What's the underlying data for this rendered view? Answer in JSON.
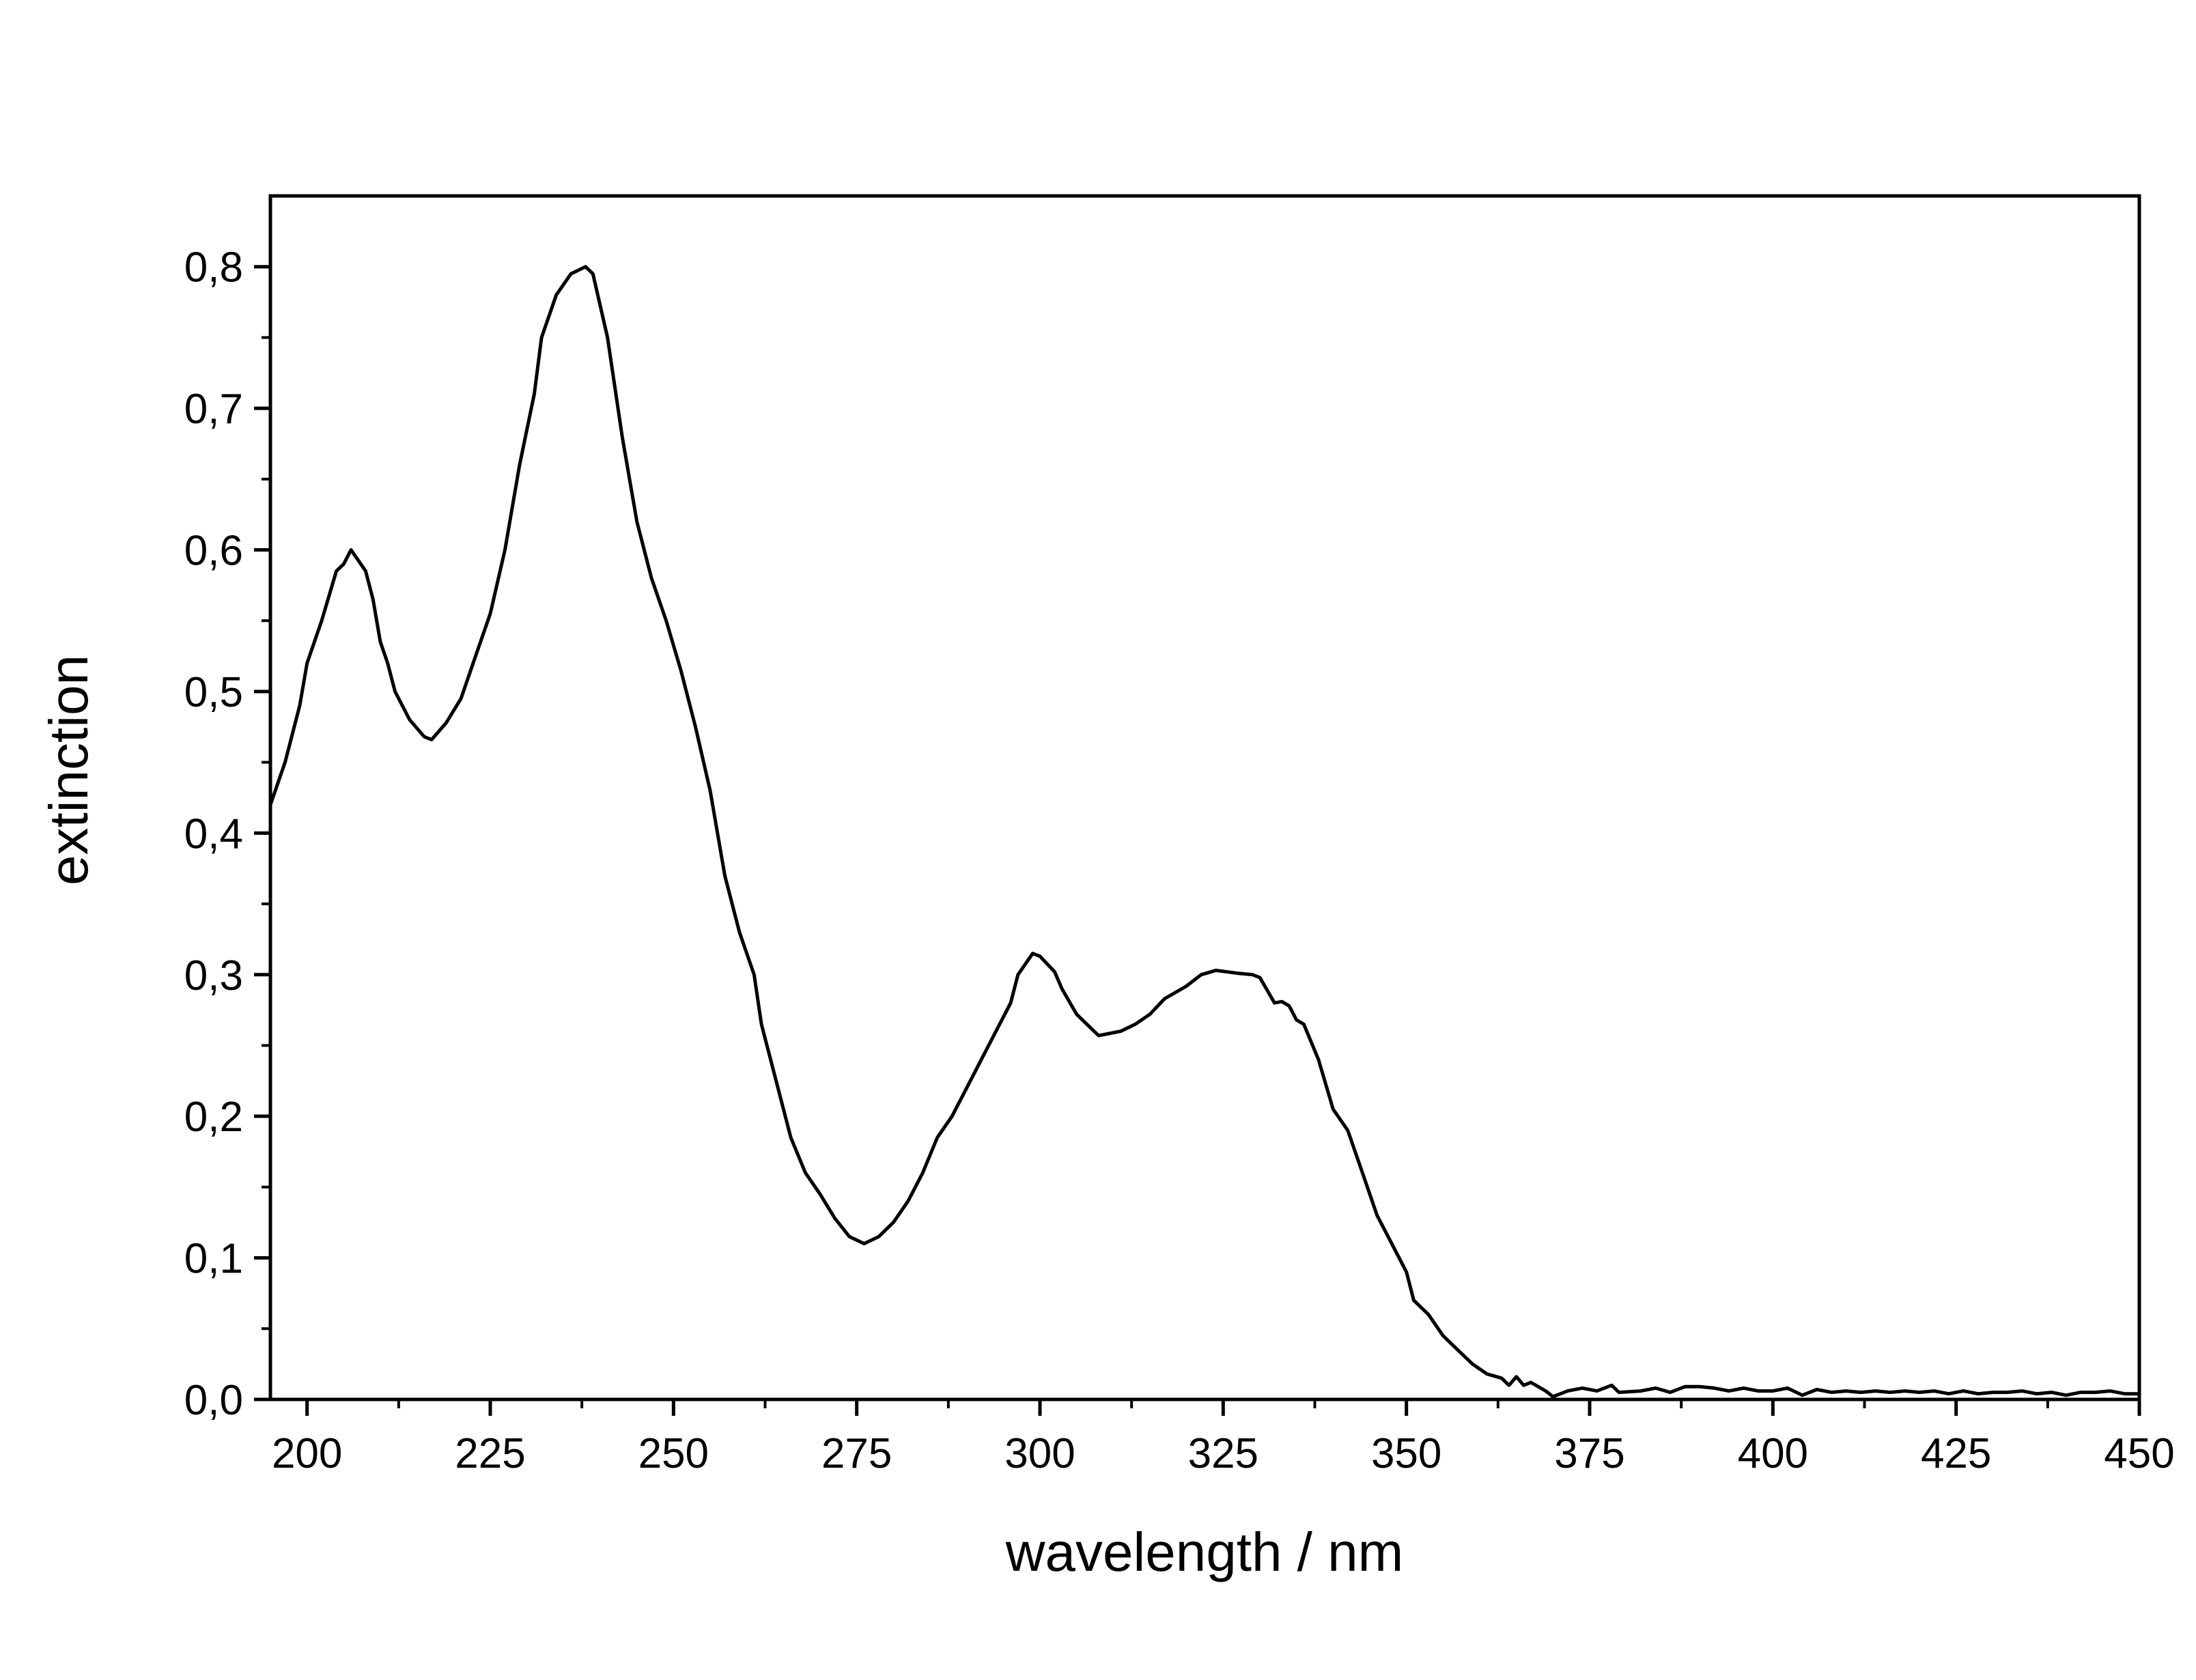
{
  "chart_data": {
    "type": "line",
    "x_label": "wavelength / nm",
    "y_label": "extinction",
    "xlim": [
      195,
      450
    ],
    "ylim": [
      0,
      0.85
    ],
    "xticks": [
      200,
      225,
      250,
      275,
      300,
      325,
      350,
      375,
      400,
      425,
      450
    ],
    "xticks_minor": [
      212.5,
      237.5,
      262.5,
      287.5,
      312.5,
      337.5,
      362.5,
      387.5,
      412.5,
      437.5
    ],
    "yticks": [
      {
        "value": 0,
        "label": "0,0"
      },
      {
        "value": 0.1,
        "label": "0,1"
      },
      {
        "value": 0.2,
        "label": "0,2"
      },
      {
        "value": 0.3,
        "label": "0,3"
      },
      {
        "value": 0.4,
        "label": "0,4"
      },
      {
        "value": 0.5,
        "label": "0,5"
      },
      {
        "value": 0.6,
        "label": "0,6"
      },
      {
        "value": 0.7,
        "label": "0,7"
      },
      {
        "value": 0.8,
        "label": "0,8"
      }
    ],
    "yticks_minor": [
      0.05,
      0.15,
      0.25,
      0.35,
      0.45,
      0.55,
      0.65,
      0.75
    ],
    "color": "#000000",
    "x": [
      195,
      197,
      199,
      200,
      202,
      204,
      205,
      206,
      208,
      209,
      210,
      211,
      212,
      214,
      216,
      217,
      219,
      221,
      223,
      225,
      227,
      229,
      231,
      232,
      234,
      236,
      238,
      239,
      241,
      243,
      245,
      247,
      249,
      251,
      253,
      255,
      257,
      259,
      261,
      262,
      264,
      266,
      268,
      270,
      272,
      274,
      276,
      278,
      280,
      282,
      284,
      286,
      288,
      290,
      292,
      294,
      296,
      297,
      299,
      300,
      302,
      303,
      305,
      307,
      308,
      311,
      313,
      315,
      317,
      320,
      322,
      324,
      327,
      329,
      330,
      332,
      333,
      334,
      335,
      336,
      338,
      340,
      342,
      344,
      346,
      348,
      350,
      351,
      353,
      355,
      357,
      359,
      361,
      363,
      364,
      365,
      366,
      367,
      369,
      370,
      372,
      374,
      376,
      378,
      379,
      382,
      384,
      386,
      388,
      390,
      392,
      394,
      396,
      398,
      400,
      402,
      404,
      406,
      408,
      410,
      412,
      414,
      416,
      418,
      420,
      422,
      424,
      426,
      428,
      430,
      432,
      434,
      436,
      438,
      440,
      442,
      444,
      446,
      448,
      450
    ],
    "values": [
      0.42,
      0.45,
      0.49,
      0.52,
      0.55,
      0.585,
      0.59,
      0.6,
      0.585,
      0.565,
      0.535,
      0.52,
      0.5,
      0.48,
      0.468,
      0.466,
      0.478,
      0.495,
      0.525,
      0.555,
      0.6,
      0.66,
      0.71,
      0.75,
      0.78,
      0.795,
      0.8,
      0.795,
      0.75,
      0.68,
      0.62,
      0.58,
      0.55,
      0.515,
      0.475,
      0.43,
      0.37,
      0.33,
      0.3,
      0.265,
      0.225,
      0.185,
      0.16,
      0.145,
      0.128,
      0.115,
      0.11,
      0.115,
      0.125,
      0.14,
      0.16,
      0.185,
      0.2,
      0.22,
      0.24,
      0.26,
      0.28,
      0.3,
      0.315,
      0.313,
      0.302,
      0.29,
      0.272,
      0.262,
      0.257,
      0.26,
      0.265,
      0.272,
      0.283,
      0.292,
      0.3,
      0.303,
      0.301,
      0.3,
      0.298,
      0.28,
      0.281,
      0.278,
      0.268,
      0.265,
      0.24,
      0.205,
      0.19,
      0.16,
      0.13,
      0.11,
      0.09,
      0.07,
      0.06,
      0.045,
      0.035,
      0.025,
      0.018,
      0.015,
      0.01,
      0.016,
      0.01,
      0.012,
      0.006,
      0.002,
      0.006,
      0.008,
      0.006,
      0.01,
      0.005,
      0.006,
      0.008,
      0.005,
      0.009,
      0.009,
      0.008,
      0.006,
      0.008,
      0.006,
      0.006,
      0.008,
      0.003,
      0.007,
      0.005,
      0.006,
      0.005,
      0.006,
      0.005,
      0.006,
      0.005,
      0.006,
      0.004,
      0.006,
      0.004,
      0.005,
      0.005,
      0.006,
      0.004,
      0.005,
      0.003,
      0.005,
      0.005,
      0.006,
      0.004,
      0.004
    ]
  }
}
